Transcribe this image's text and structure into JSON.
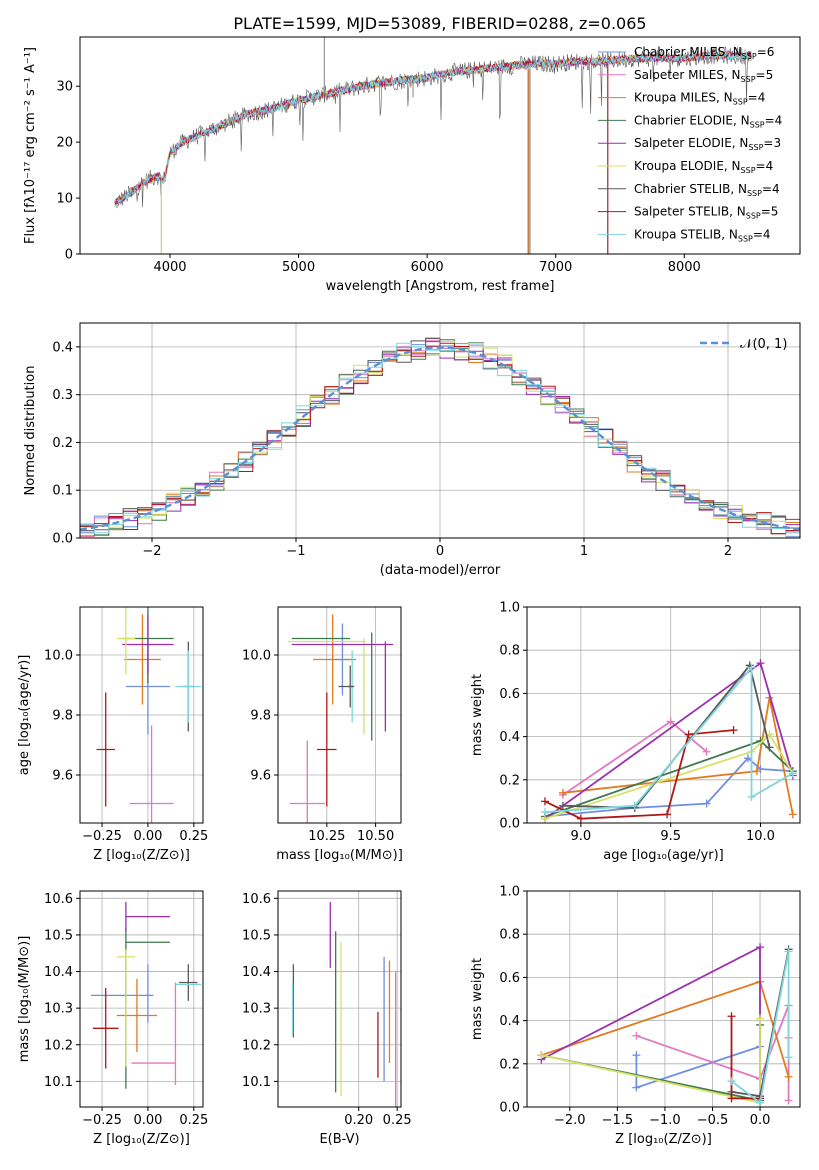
{
  "figure": {
    "title": "PLATE=1599, MJD=53089, FIBERID=0288, z=0.065"
  },
  "colors": {
    "Chabrier MILES": "#6f8fe0",
    "Salpeter MILES": "#e377c2",
    "Kroupa MILES": "#e07b22",
    "Chabrier ELODIE": "#3f7a4e",
    "Salpeter ELODIE": "#9b2fae",
    "Kroupa ELODIE": "#d6e16a",
    "Chabrier STELIB": "#595959",
    "Salpeter STELIB": "#b01818",
    "Kroupa STELIB": "#7fd6dd"
  },
  "chart_data": [
    {
      "id": "spectrum",
      "type": "line",
      "xlabel": "wavelength [Angstrom, rest frame]",
      "ylabel": "Flux [fλ10⁻¹⁷ erg cm⁻² s⁻¹ A⁻¹]",
      "xlim": [
        3300,
        8900
      ],
      "ylim": [
        0,
        38.8
      ],
      "xticks": [
        4000,
        5000,
        6000,
        7000,
        8000
      ],
      "yticks": [
        0,
        10,
        20,
        30
      ],
      "legend_position": "right",
      "legend": [
        "Chabrier MILES, N_SSP=6",
        "Salpeter MILES, N_SSP=5",
        "Kroupa MILES, N_SSP=4",
        "Chabrier ELODIE, N_SSP=4",
        "Salpeter ELODIE, N_SSP=3",
        "Kroupa ELODIE, N_SSP=4",
        "Chabrier STELIB, N_SSP=4",
        "Salpeter STELIB, N_SSP=5",
        "Kroupa STELIB, N_SSP=4"
      ],
      "continuum_x": [
        3570,
        3700,
        3800,
        3900,
        3950,
        4000,
        4100,
        4200,
        4300,
        4400,
        4600,
        4800,
        5000,
        5200,
        5400,
        5600,
        5800,
        6000,
        6200,
        6400,
        6600,
        6800,
        7000,
        7200,
        7400,
        7600,
        7800,
        8000,
        8200,
        8400,
        8500
      ],
      "continuum_y": [
        9,
        11,
        13,
        14,
        13,
        18,
        20,
        21,
        22,
        23,
        25,
        26,
        27.5,
        28.5,
        29.5,
        30.5,
        31,
        31.5,
        32.5,
        33,
        33.5,
        34,
        34,
        34.5,
        34.5,
        35,
        35,
        35,
        35.5,
        35.5,
        35.5
      ],
      "spikes": [
        {
          "x": 3933,
          "y": 0
        },
        {
          "x": 5200,
          "y": 38.8
        },
        {
          "x": 5890,
          "y": 28
        },
        {
          "x": 6785,
          "y": 0
        },
        {
          "x": 6800,
          "y": 0
        },
        {
          "x": 7405,
          "y": 0
        }
      ]
    },
    {
      "id": "residuals",
      "type": "histogram",
      "xlabel": "(data-model)/error",
      "ylabel": "Normed distribution",
      "xlim": [
        -2.5,
        2.5
      ],
      "ylim": [
        0,
        0.45
      ],
      "xticks": [
        -2,
        -1,
        0,
        1,
        2
      ],
      "yticks": [
        0.0,
        0.1,
        0.2,
        0.3,
        0.4
      ],
      "grid": true,
      "legend_position": "top-right",
      "curve_label": "𝒩(0, 1)",
      "curve_color": "#5b8fd6",
      "bin_width": 0.1
    },
    {
      "id": "age_vs_Z",
      "type": "errorbar",
      "xlabel": "Z [log₁₀(Z/Z⊙)]",
      "ylabel": "age  [log₁₀(age/yr)]",
      "xlim": [
        -0.37,
        0.3
      ],
      "ylim": [
        9.44,
        10.16
      ],
      "xticks": [
        -0.25,
        0.0,
        0.25
      ],
      "yticks": [
        9.6,
        9.8,
        10.0
      ],
      "grid": true,
      "points": [
        {
          "model": "Chabrier MILES",
          "x": 0.0,
          "xerr": 0.12,
          "y": 9.895,
          "yerr": 0.16
        },
        {
          "model": "Salpeter MILES",
          "x": 0.02,
          "xerr": 0.12,
          "y": 9.505,
          "yerr": 0.26
        },
        {
          "model": "Kroupa MILES",
          "x": -0.03,
          "xerr": 0.1,
          "y": 9.985,
          "yerr": 0.15
        },
        {
          "model": "Chabrier ELODIE",
          "x": 0.0,
          "xerr": 0.14,
          "y": 10.055,
          "yerr": 0.15
        },
        {
          "model": "Salpeter ELODIE",
          "x": 0.0,
          "xerr": 0.14,
          "y": 10.035,
          "yerr": 0.1
        },
        {
          "model": "Kroupa ELODIE",
          "x": -0.12,
          "xerr": 0.05,
          "y": 10.055,
          "yerr": 0.12
        },
        {
          "model": "Chabrier STELIB",
          "x": 0.22,
          "xerr": 0.03,
          "y": 9.895,
          "yerr": 0.15
        },
        {
          "model": "Salpeter STELIB",
          "x": -0.23,
          "xerr": 0.05,
          "y": 9.685,
          "yerr": 0.19
        },
        {
          "model": "Kroupa STELIB",
          "x": 0.22,
          "xerr": 0.07,
          "y": 9.895,
          "yerr": 0.12
        }
      ]
    },
    {
      "id": "age_vs_mass",
      "type": "errorbar",
      "xlabel": "mass [log₁₀(M/M⊙)]",
      "ylabel": "",
      "xlim": [
        10.0,
        10.63
      ],
      "ylim": [
        9.44,
        10.16
      ],
      "xticks": [
        10.25,
        10.5
      ],
      "yticks": [
        9.6,
        9.8,
        10.0
      ],
      "grid": true,
      "points": [
        {
          "model": "Chabrier MILES",
          "x": 10.33,
          "xerr": 0.07,
          "y": 9.985,
          "yerr": 0.12
        },
        {
          "model": "Salpeter MILES",
          "x": 10.15,
          "xerr": 0.09,
          "y": 9.505,
          "yerr": 0.21
        },
        {
          "model": "Kroupa MILES",
          "x": 10.28,
          "xerr": 0.1,
          "y": 9.985,
          "yerr": 0.15
        },
        {
          "model": "Chabrier ELODIE",
          "x": 10.48,
          "xerr": 0.0,
          "y": 9.895,
          "yerr": 0.18
        },
        {
          "model": "Salpeter ELODIE",
          "x": 10.55,
          "xerr": 0.0,
          "y": 9.895,
          "yerr": 0.15
        },
        {
          "model": "Kroupa ELODIE",
          "x": 10.44,
          "xerr": 0.0,
          "y": 9.895,
          "yerr": 0.16
        },
        {
          "model": "Chabrier STELIB",
          "x": 10.37,
          "xerr": 0.01,
          "y": 9.895,
          "yerr": 0.07
        },
        {
          "model": "Salpeter STELIB",
          "x": 10.25,
          "xerr": 0.05,
          "y": 9.685,
          "yerr": 0.19
        },
        {
          "model": "Kroupa STELIB",
          "x": 10.38,
          "xerr": 0.01,
          "y": 9.895,
          "yerr": 0.12
        },
        {
          "model": "Salpeter ELODIE",
          "x": 10.33,
          "xerr": 0.26,
          "y": 10.035,
          "yerr": 0.0
        },
        {
          "model": "Chabrier ELODIE",
          "x": 10.22,
          "xerr": 0.15,
          "y": 10.055,
          "yerr": 0.0
        },
        {
          "model": "Kroupa ELODIE",
          "x": 10.25,
          "xerr": 0.2,
          "y": 10.045,
          "yerr": 0.0
        },
        {
          "model": "Chabrier STELIB",
          "x": 10.35,
          "xerr": 0.04,
          "y": 9.895,
          "yerr": 0.0
        }
      ]
    },
    {
      "id": "weight_vs_age",
      "type": "line",
      "xlabel": "age  [log₁₀(age/yr)]",
      "ylabel": "mass weight",
      "xlim": [
        8.7,
        10.22
      ],
      "ylim": [
        0.0,
        1.0
      ],
      "xticks": [
        9.0,
        9.5,
        10.0
      ],
      "yticks": [
        0.0,
        0.2,
        0.4,
        0.6,
        0.8,
        1.0
      ],
      "grid": true,
      "series": [
        {
          "model": "Chabrier MILES",
          "x": [
            8.8,
            9.3,
            9.7,
            9.93,
            10.0,
            10.18
          ],
          "y": [
            0.03,
            0.07,
            0.09,
            0.3,
            0.25,
            0.24
          ]
        },
        {
          "model": "Salpeter MILES",
          "x": [
            8.9,
            9.5,
            9.7
          ],
          "y": [
            0.13,
            0.47,
            0.33
          ]
        },
        {
          "model": "Kroupa MILES",
          "x": [
            8.9,
            9.98,
            10.05,
            10.18
          ],
          "y": [
            0.14,
            0.24,
            0.58,
            0.04
          ]
        },
        {
          "model": "Chabrier ELODIE",
          "x": [
            8.8,
            10.0,
            10.18
          ],
          "y": [
            0.03,
            0.38,
            0.24
          ]
        },
        {
          "model": "Salpeter ELODIE",
          "x": [
            8.8,
            10.0,
            10.18
          ],
          "y": [
            0.02,
            0.74,
            0.22
          ]
        },
        {
          "model": "Kroupa ELODIE",
          "x": [
            8.8,
            9.95,
            10.05,
            10.18
          ],
          "y": [
            0.02,
            0.33,
            0.41,
            0.23
          ]
        },
        {
          "model": "Chabrier STELIB",
          "x": [
            8.9,
            9.3,
            9.94,
            10.05
          ],
          "y": [
            0.08,
            0.07,
            0.73,
            0.35
          ]
        },
        {
          "model": "Salpeter STELIB",
          "x": [
            8.8,
            9.0,
            9.48,
            9.6,
            9.85
          ],
          "y": [
            0.1,
            0.02,
            0.04,
            0.41,
            0.43
          ]
        },
        {
          "model": "Kroupa STELIB",
          "x": [
            8.8,
            9.3,
            9.95,
            9.95,
            10.18
          ],
          "y": [
            0.05,
            0.08,
            0.72,
            0.12,
            0.23
          ]
        }
      ]
    },
    {
      "id": "mass_vs_Z",
      "type": "errorbar",
      "xlabel": "Z [log₁₀(Z/Z⊙)]",
      "ylabel": "mass [log₁₀(M/M⊙)]",
      "xlim": [
        -0.37,
        0.3
      ],
      "ylim": [
        10.03,
        10.62
      ],
      "xticks": [
        -0.25,
        0.0,
        0.25
      ],
      "yticks": [
        10.1,
        10.2,
        10.3,
        10.4,
        10.5,
        10.6
      ],
      "grid": true,
      "points": [
        {
          "model": "Chabrier MILES",
          "x": 0.0,
          "xerr": 0.0,
          "y": 10.34,
          "yerr": 0.08
        },
        {
          "model": "Chabrier MILES",
          "x": -0.14,
          "xerr": 0.17,
          "y": 10.335,
          "yerr": 0.0
        },
        {
          "model": "Salpeter MILES",
          "x": 0.03,
          "xerr": 0.12,
          "y": 10.15,
          "yerr": 0.0
        },
        {
          "model": "Salpeter MILES",
          "x": 0.15,
          "xerr": 0.0,
          "y": 10.23,
          "yerr": 0.14
        },
        {
          "model": "Kroupa MILES",
          "x": -0.06,
          "xerr": 0.11,
          "y": 10.28,
          "yerr": 0.1
        },
        {
          "model": "Chabrier ELODIE",
          "x": 0.0,
          "xerr": 0.12,
          "y": 10.48,
          "yerr": 0.0
        },
        {
          "model": "Chabrier ELODIE",
          "x": -0.12,
          "xerr": 0.0,
          "y": 10.3,
          "yerr": 0.22
        },
        {
          "model": "Salpeter ELODIE",
          "x": 0.0,
          "xerr": 0.12,
          "y": 10.55,
          "yerr": 0.0
        },
        {
          "model": "Salpeter ELODIE",
          "x": -0.12,
          "xerr": 0.0,
          "y": 10.55,
          "yerr": 0.04
        },
        {
          "model": "Kroupa ELODIE",
          "x": -0.12,
          "xerr": 0.05,
          "y": 10.44,
          "yerr": 0.0
        },
        {
          "model": "Kroupa ELODIE",
          "x": -0.12,
          "xerr": 0.0,
          "y": 10.3,
          "yerr": 0.16
        },
        {
          "model": "Chabrier STELIB",
          "x": 0.22,
          "xerr": 0.05,
          "y": 10.37,
          "yerr": 0.05
        },
        {
          "model": "Salpeter STELIB",
          "x": -0.23,
          "xerr": 0.07,
          "y": 10.245,
          "yerr": 0.11
        },
        {
          "model": "Kroupa STELIB",
          "x": 0.22,
          "xerr": 0.07,
          "y": 10.365,
          "yerr": 0.0
        }
      ]
    },
    {
      "id": "mass_vs_ebv",
      "type": "errorbar",
      "xlabel": "E(B-V)",
      "ylabel": "",
      "xlim": [
        0.095,
        0.255
      ],
      "ylim": [
        10.03,
        10.62
      ],
      "xticks": [
        0.2,
        0.25
      ],
      "yticks": [
        10.1,
        10.2,
        10.3,
        10.4,
        10.5,
        10.6
      ],
      "grid": true,
      "points": [
        {
          "model": "Chabrier MILES",
          "x": 0.233,
          "xerr": 0.0,
          "y": 10.27,
          "yerr": 0.17
        },
        {
          "model": "Salpeter MILES",
          "x": 0.248,
          "xerr": 0.0,
          "y": 10.2,
          "yerr": 0.2
        },
        {
          "model": "Kroupa MILES",
          "x": 0.24,
          "xerr": 0.0,
          "y": 10.29,
          "yerr": 0.14
        },
        {
          "model": "Chabrier ELODIE",
          "x": 0.17,
          "xerr": 0.0,
          "y": 10.29,
          "yerr": 0.22
        },
        {
          "model": "Salpeter ELODIE",
          "x": 0.163,
          "xerr": 0.0,
          "y": 10.5,
          "yerr": 0.09
        },
        {
          "model": "Kroupa ELODIE",
          "x": 0.177,
          "xerr": 0.0,
          "y": 10.27,
          "yerr": 0.21
        },
        {
          "model": "Chabrier STELIB",
          "x": 0.115,
          "xerr": 0.0,
          "y": 10.32,
          "yerr": 0.1
        },
        {
          "model": "Salpeter STELIB",
          "x": 0.225,
          "xerr": 0.0,
          "y": 10.2,
          "yerr": 0.09
        },
        {
          "model": "Kroupa STELIB",
          "x": 0.114,
          "xerr": 0.0,
          "y": 10.3,
          "yerr": 0.07
        }
      ]
    },
    {
      "id": "weight_vs_Z",
      "type": "line",
      "xlabel": "Z [log₁₀(Z/Z⊙)]",
      "ylabel": "mass weight",
      "xlim": [
        -2.45,
        0.42
      ],
      "ylim": [
        0.0,
        1.0
      ],
      "xticks": [
        -2.0,
        -1.5,
        -1.0,
        -0.5,
        0.0
      ],
      "yticks": [
        0.0,
        0.2,
        0.4,
        0.6,
        0.8,
        1.0
      ],
      "grid": true,
      "series": [
        {
          "model": "Chabrier MILES",
          "x": [
            -1.3,
            -1.3,
            0.0,
            0.0
          ],
          "y": [
            0.24,
            0.09,
            0.28,
            0.05
          ]
        },
        {
          "model": "Salpeter MILES",
          "x": [
            -1.3,
            0.0,
            0.3,
            0.3,
            0.3
          ],
          "y": [
            0.33,
            0.13,
            0.47,
            0.03,
            0.32
          ]
        },
        {
          "model": "Kroupa MILES",
          "x": [
            -2.3,
            0.0,
            0.3
          ],
          "y": [
            0.24,
            0.58,
            0.14
          ]
        },
        {
          "model": "Chabrier ELODIE",
          "x": [
            -2.3,
            0.0,
            0.0
          ],
          "y": [
            0.24,
            0.03,
            0.38
          ]
        },
        {
          "model": "Salpeter ELODIE",
          "x": [
            -2.3,
            0.0,
            0.0
          ],
          "y": [
            0.22,
            0.74,
            0.02
          ]
        },
        {
          "model": "Kroupa ELODIE",
          "x": [
            -2.3,
            0.0,
            0.0
          ],
          "y": [
            0.24,
            0.02,
            0.41
          ]
        },
        {
          "model": "Chabrier STELIB",
          "x": [
            -0.3,
            0.0,
            0.3
          ],
          "y": [
            0.07,
            0.05,
            0.73
          ]
        },
        {
          "model": "Salpeter STELIB",
          "x": [
            -0.3,
            -0.3,
            0.0
          ],
          "y": [
            0.42,
            0.04,
            0.04
          ]
        },
        {
          "model": "Kroupa STELIB",
          "x": [
            -0.3,
            0.0,
            0.3,
            0.3
          ],
          "y": [
            0.12,
            0.02,
            0.72,
            0.23
          ]
        }
      ]
    }
  ]
}
